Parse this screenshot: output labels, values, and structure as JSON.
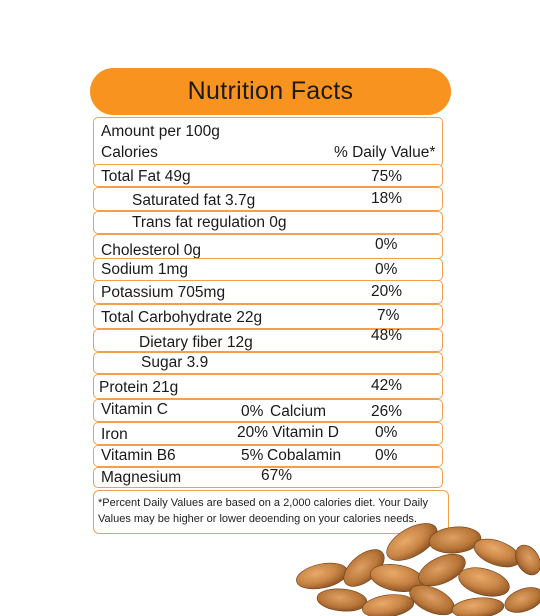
{
  "title": "Nutrition Facts",
  "header": {
    "amount_per": "Amount per 100g",
    "calories": "Calories",
    "daily_value_header": "% Daily Value*"
  },
  "nutrients": [
    {
      "label": "Total Fat 49g",
      "dv": "75%"
    },
    {
      "label": "Saturated fat 3.7g",
      "dv": "18%"
    },
    {
      "label": "Trans fat regulation 0g",
      "dv": ""
    },
    {
      "label": "Cholesterol 0g",
      "dv": "0%"
    },
    {
      "label": "Sodium 1mg",
      "dv": "0%"
    },
    {
      "label": "Potassium 705mg",
      "dv": "20%"
    },
    {
      "label": "Total Carbohydrate 22g",
      "dv": "7%"
    },
    {
      "label": "Dietary fiber 12g",
      "dv": "48%"
    },
    {
      "label": "Sugar 3.9",
      "dv": ""
    },
    {
      "label": "Protein 21g",
      "dv": "42%"
    }
  ],
  "vitamins": [
    {
      "name": "Vitamin C",
      "value": "0%",
      "name2": "Calcium",
      "value2": "26%"
    },
    {
      "name": "Iron",
      "value": "20%",
      "name2": "Vitamin D",
      "value2": "0%"
    },
    {
      "name": "Vitamin B6",
      "value": "5%",
      "name2": "Cobalamin",
      "value2": "0%"
    },
    {
      "name": "Magnesium",
      "value": "67%"
    }
  ],
  "footnote": "*Percent Daily Values are based on a 2,000 calories diet. Your Daily Values may be higher or lower deoending on your calories needs.",
  "colors": {
    "accent": "#f7931e",
    "border": "#f2a04b",
    "almond": "#c98546"
  }
}
